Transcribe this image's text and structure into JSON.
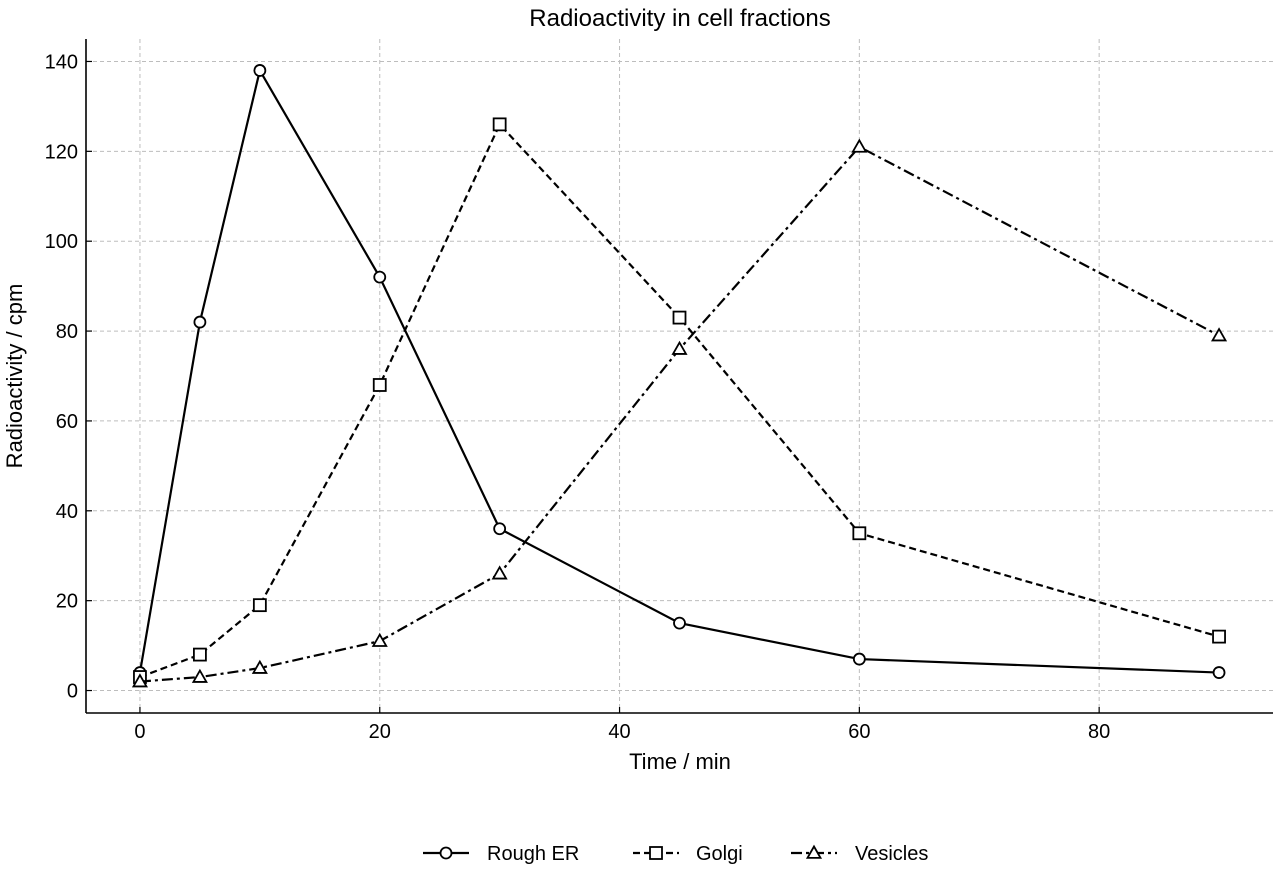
{
  "chart_data": {
    "type": "line",
    "title": "Radioactivity in cell fractions",
    "xlabel": "Time / min",
    "ylabel": "Radioactivity / cpm",
    "xlim": [
      -4.5,
      94.5
    ],
    "ylim": [
      -5,
      145
    ],
    "xticks": [
      0,
      20,
      40,
      60,
      80
    ],
    "yticks": [
      0,
      20,
      40,
      60,
      80,
      100,
      120,
      140
    ],
    "grid": true,
    "legend_position": "bottom-center",
    "series": [
      {
        "name": "Rough ER",
        "marker": "circle",
        "linestyle": "solid",
        "x": [
          0,
          5,
          10,
          20,
          30,
          45,
          60,
          90
        ],
        "y": [
          4,
          82,
          138,
          92,
          36,
          15,
          7,
          4
        ]
      },
      {
        "name": "Golgi",
        "marker": "square",
        "linestyle": "dashed",
        "x": [
          0,
          5,
          10,
          20,
          30,
          45,
          60,
          90
        ],
        "y": [
          3,
          8,
          19,
          68,
          126,
          83,
          35,
          12
        ]
      },
      {
        "name": "Vesicles",
        "marker": "triangle",
        "linestyle": "dashdot",
        "x": [
          0,
          5,
          10,
          20,
          30,
          45,
          60,
          90
        ],
        "y": [
          2,
          3,
          5,
          11,
          26,
          76,
          121,
          79
        ]
      }
    ]
  }
}
